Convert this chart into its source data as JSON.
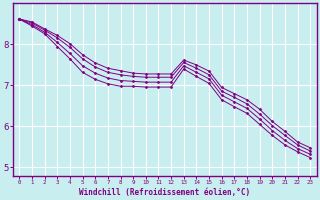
{
  "xlabel": "Windchill (Refroidissement éolien,°C)",
  "bg_color": "#c8eef0",
  "line_color": "#800080",
  "grid_color": "#ffffff",
  "axis_color": "#800080",
  "xlim": [
    -0.5,
    23.5
  ],
  "ylim": [
    4.8,
    9.0
  ],
  "yticks": [
    5,
    6,
    7,
    8
  ],
  "xticks": [
    0,
    1,
    2,
    3,
    4,
    5,
    6,
    7,
    8,
    9,
    10,
    11,
    12,
    13,
    14,
    15,
    16,
    17,
    18,
    19,
    20,
    21,
    22,
    23
  ],
  "line1": [
    8.62,
    8.55,
    8.38,
    8.22,
    8.02,
    7.75,
    7.55,
    7.42,
    7.36,
    7.3,
    7.28,
    7.28,
    7.28,
    7.62,
    7.5,
    7.35,
    6.95,
    6.8,
    6.65,
    6.42,
    6.12,
    5.88,
    5.62,
    5.48
  ],
  "line2": [
    8.62,
    8.52,
    8.35,
    8.16,
    7.93,
    7.65,
    7.45,
    7.32,
    7.26,
    7.22,
    7.2,
    7.2,
    7.2,
    7.56,
    7.42,
    7.26,
    6.86,
    6.71,
    6.55,
    6.3,
    6.02,
    5.78,
    5.55,
    5.4
  ],
  "line3": [
    8.62,
    8.48,
    8.3,
    8.05,
    7.78,
    7.48,
    7.3,
    7.18,
    7.12,
    7.1,
    7.08,
    7.08,
    7.08,
    7.48,
    7.32,
    7.16,
    6.76,
    6.6,
    6.44,
    6.18,
    5.9,
    5.66,
    5.46,
    5.32
  ],
  "line4": [
    8.62,
    8.45,
    8.26,
    7.95,
    7.65,
    7.32,
    7.15,
    7.04,
    6.98,
    6.98,
    6.96,
    6.96,
    6.96,
    7.4,
    7.22,
    7.05,
    6.65,
    6.48,
    6.32,
    6.05,
    5.78,
    5.55,
    5.38,
    5.24
  ]
}
